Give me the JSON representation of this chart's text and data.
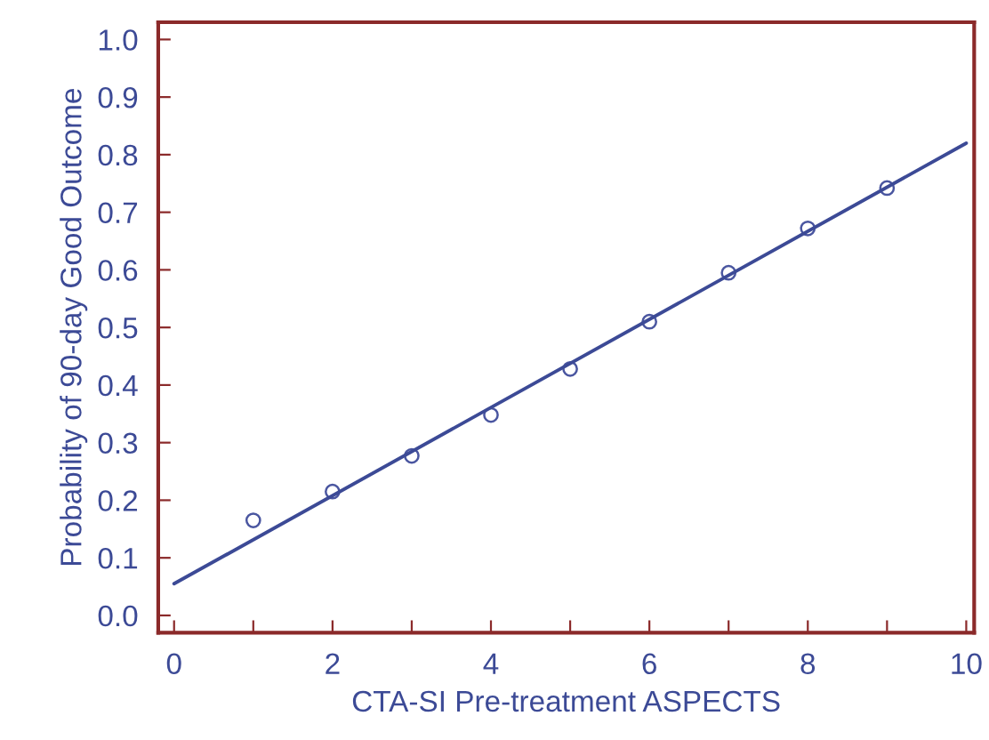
{
  "chart_data": {
    "type": "scatter",
    "xlabel": "CTA-SI Pre-treatment ASPECTS",
    "ylabel": "Probability of 90-day Good Outcome",
    "series": [
      {
        "color": "#4a56a0",
        "marker": "circle",
        "x": [
          1,
          2,
          3,
          4,
          5,
          6,
          7,
          8,
          9
        ],
        "values": [
          0.165,
          0.215,
          0.277,
          0.348,
          0.428,
          0.51,
          0.595,
          0.672,
          0.742
        ]
      },
      {
        "type": "line",
        "color": "#3c4a96",
        "marker": "none",
        "line_style": "solid",
        "x": [
          0,
          10
        ],
        "values": [
          0.055,
          0.82
        ]
      }
    ],
    "xlim": [
      -0.2,
      10.1
    ],
    "ylim": [
      -0.03,
      1.03
    ],
    "xticks": [
      0,
      {
        "value": 1,
        "label": null
      },
      2,
      {
        "value": 3,
        "label": null
      },
      4,
      {
        "value": 5,
        "label": null
      },
      6,
      {
        "value": 7,
        "label": null
      },
      8,
      {
        "value": 9,
        "label": null
      },
      10
    ],
    "yticks": [
      {
        "value": 0,
        "label": "0.0"
      },
      0.1,
      0.2,
      0.3,
      0.4,
      0.5,
      0.6,
      0.7,
      0.8,
      0.9,
      {
        "value": 1,
        "label": "1.0"
      }
    ],
    "grid": false,
    "legend": false
  }
}
